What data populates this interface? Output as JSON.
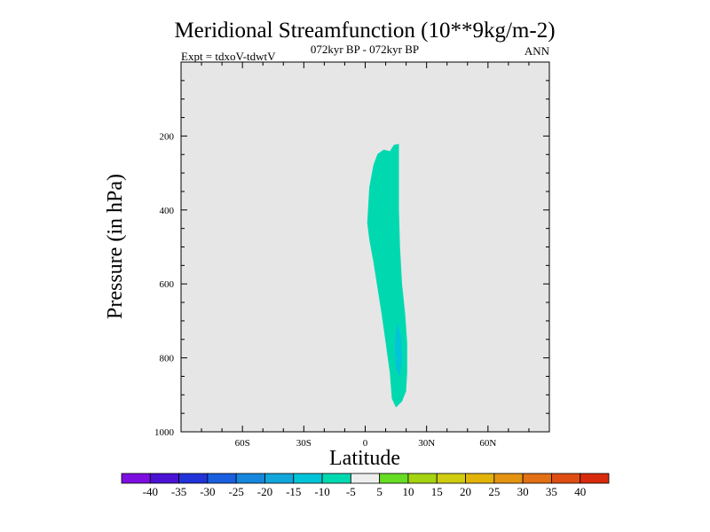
{
  "chart_data": {
    "type": "heatmap",
    "title": "Meridional Streamfunction (10**9kg/m-2)",
    "subtitle_left": "Expt = tdxoV-tdwtV",
    "subtitle_center": "072kyr BP - 072kyr BP",
    "subtitle_right": "ANN",
    "xlabel": "Latitude",
    "ylabel": "Pressure (in hPa)",
    "xlim": [
      -90,
      90
    ],
    "ylim": [
      1000,
      0
    ],
    "x_ticks": [
      {
        "value": -60,
        "label": "60S"
      },
      {
        "value": -30,
        "label": "30S"
      },
      {
        "value": 0,
        "label": "0"
      },
      {
        "value": 30,
        "label": "30N"
      },
      {
        "value": 60,
        "label": "60N"
      }
    ],
    "y_ticks": [
      {
        "value": 200,
        "label": "200"
      },
      {
        "value": 400,
        "label": "400"
      },
      {
        "value": 600,
        "label": "600"
      },
      {
        "value": 800,
        "label": "800"
      },
      {
        "value": 1000,
        "label": "1000"
      }
    ],
    "background_color": "#e6e6e6",
    "contour_regions": [
      {
        "name": "cell-minus-10-to-minus-5",
        "range": [
          -10,
          -5
        ],
        "color": "#00d9b0",
        "outline": [
          [
            16.5,
            221
          ],
          [
            14,
            224
          ],
          [
            12,
            241
          ],
          [
            9,
            237
          ],
          [
            6,
            249
          ],
          [
            4,
            279
          ],
          [
            2,
            339
          ],
          [
            1.5,
            385
          ],
          [
            1,
            435
          ],
          [
            2,
            480
          ],
          [
            4,
            540
          ],
          [
            6,
            610
          ],
          [
            8,
            680
          ],
          [
            10,
            760
          ],
          [
            12,
            840
          ],
          [
            13,
            910
          ],
          [
            15,
            934
          ],
          [
            18,
            918
          ],
          [
            20,
            890
          ],
          [
            20.5,
            840
          ],
          [
            20.5,
            760
          ],
          [
            19.5,
            680
          ],
          [
            18,
            600
          ],
          [
            17,
            500
          ],
          [
            16.5,
            400
          ],
          [
            16.5,
            300
          ]
        ]
      },
      {
        "name": "cell-minus-15-to-minus-10",
        "range": [
          -15,
          -10
        ],
        "color": "#00c4d8",
        "outline": [
          [
            15.5,
            700
          ],
          [
            14.5,
            770
          ],
          [
            15,
            830
          ],
          [
            17,
            850
          ],
          [
            18,
            800
          ],
          [
            17.5,
            740
          ]
        ]
      }
    ],
    "colorbar": {
      "colors": [
        "#7c0fe0",
        "#4b12d4",
        "#2233d8",
        "#1a5fe0",
        "#1687dc",
        "#12a6da",
        "#00c4d8",
        "#00d9b0",
        "#eeeeee",
        "#66dd22",
        "#a4d40f",
        "#d0cc10",
        "#e2b40a",
        "#e49412",
        "#e27014",
        "#de4e12",
        "#d82a0c"
      ],
      "labels": [
        "-40",
        "-35",
        "-30",
        "-25",
        "-20",
        "-15",
        "-10",
        "-5",
        "5",
        "10",
        "15",
        "20",
        "25",
        "30",
        "35",
        "40"
      ]
    }
  }
}
